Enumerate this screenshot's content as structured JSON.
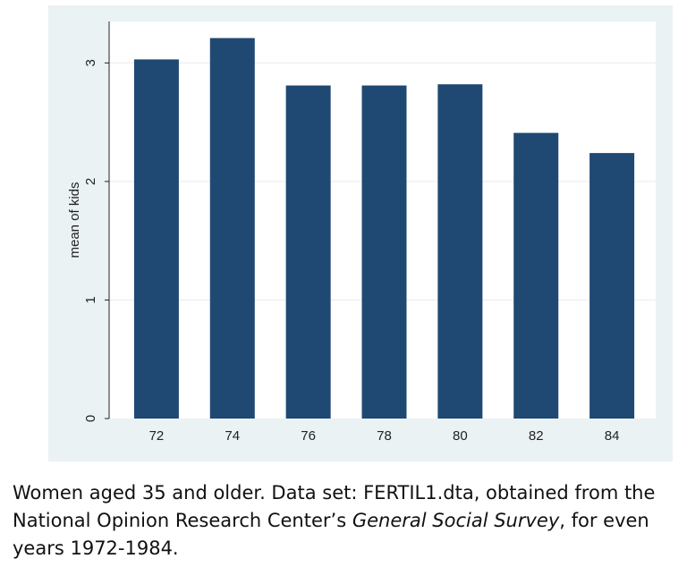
{
  "chart_data": {
    "type": "bar",
    "categories": [
      "72",
      "74",
      "76",
      "78",
      "80",
      "82",
      "84"
    ],
    "values": [
      3.03,
      3.21,
      2.81,
      2.81,
      2.82,
      2.41,
      2.24
    ],
    "ylabel": "mean of kids",
    "yticks": [
      "0",
      "1",
      "2",
      "3"
    ],
    "ylim": [
      0,
      3.35
    ],
    "grid": true,
    "bar_color": "#1f4973",
    "background_color": "#eaf2f3"
  },
  "caption": {
    "part1": "Women aged 35 and older. Data set: FERTIL1.dta, obtained from the National Opinion Research Center’s ",
    "survey_name": "General Social Survey",
    "part2": ", for even years 1972-1984."
  }
}
